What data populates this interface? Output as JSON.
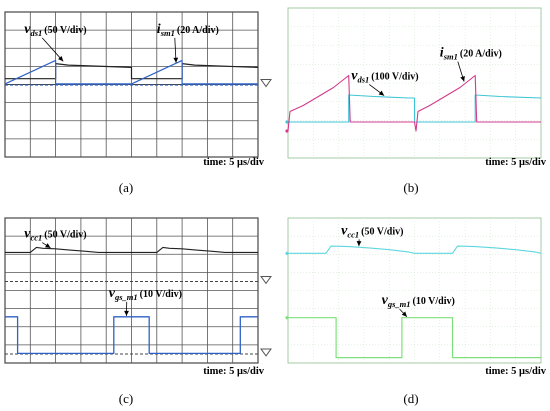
{
  "panels": [
    {
      "id": "a",
      "caption": "(a)",
      "time_label": "time: 5 μs/div",
      "style": "bw",
      "chart_data": {
        "type": "line",
        "xlabel": "time: 5 μs/div",
        "x_unit": "μs",
        "xlim": [
          0,
          50
        ],
        "grid": true,
        "series": [
          {
            "name": "v_ds1 (50 V/div)",
            "symbol": "v",
            "sub": "ds1",
            "scale": "(50 V/div)",
            "color": "#222222",
            "thickness": 1.2,
            "points": [
              [
                0,
                0.2
              ],
              [
                10,
                0.2
              ],
              [
                10,
                0.72
              ],
              [
                12.5,
                0.67
              ],
              [
                25,
                0.59
              ],
              [
                25,
                0.2
              ],
              [
                35,
                0.2
              ],
              [
                35,
                0.72
              ],
              [
                37.5,
                0.67
              ],
              [
                50,
                0.59
              ]
            ]
          },
          {
            "name": "i_sm1 (20 A/div)",
            "symbol": "i",
            "sub": "sm1",
            "scale": "(20 A/div)",
            "color": "#2f62c8",
            "thickness": 1.2,
            "points": [
              [
                0,
                0.02
              ],
              [
                10,
                0.83
              ],
              [
                10,
                0.02
              ],
              [
                25,
                0.02
              ],
              [
                35,
                0.83
              ],
              [
                35,
                0.02
              ],
              [
                50,
                0.02
              ]
            ]
          }
        ],
        "baselines": [
          {
            "y": 0.0,
            "color": "#444444",
            "dashed": false,
            "marker": "arrow-right-gray"
          },
          {
            "y": -0.02,
            "color": "#2f62c8",
            "dashed": true,
            "marker": ""
          }
        ],
        "annotations": [
          {
            "series": 0,
            "label_xy": [
              3.8,
              1.78
            ],
            "arrow_to": [
              11.5,
              0.8
            ]
          },
          {
            "series": 1,
            "label_xy": [
              30.0,
              1.78
            ],
            "arrow_to": [
              33.8,
              0.75
            ]
          }
        ]
      }
    },
    {
      "id": "b",
      "caption": "(b)",
      "time_label": "time: 5 μs/div",
      "style": "color",
      "chart_data": {
        "type": "line",
        "xlabel": "time: 5 μs/div",
        "x_unit": "μs",
        "xlim": [
          0,
          50
        ],
        "grid": true,
        "series": [
          {
            "name": "v_ds1 (100 V/div)",
            "symbol": "v",
            "sub": "ds1",
            "scale": "(100 V/div)",
            "color": "#3fc6d6",
            "thickness": 1.1,
            "points": [
              [
                0,
                0.0
              ],
              [
                12,
                0.0
              ],
              [
                12,
                0.9
              ],
              [
                17,
                0.85
              ],
              [
                24,
                0.8
              ],
              [
                25,
                0.8
              ],
              [
                25,
                0.0
              ],
              [
                37,
                0.0
              ],
              [
                37,
                0.9
              ],
              [
                42,
                0.85
              ],
              [
                50,
                0.8
              ]
            ]
          },
          {
            "name": "i_sm1 (20 A/div)",
            "symbol": "i",
            "sub": "sm1",
            "scale": "(20 A/div)",
            "color": "#d23a8c",
            "thickness": 1.1,
            "points": [
              [
                0,
                -0.3
              ],
              [
                0.4,
                0.35
              ],
              [
                3,
                0.55
              ],
              [
                6,
                0.85
              ],
              [
                9,
                1.15
              ],
              [
                12,
                1.55
              ],
              [
                12.3,
                0.0
              ],
              [
                25,
                0.0
              ],
              [
                25.3,
                -0.3
              ],
              [
                25.7,
                0.35
              ],
              [
                28,
                0.55
              ],
              [
                31,
                0.85
              ],
              [
                34,
                1.15
              ],
              [
                37,
                1.55
              ],
              [
                37.3,
                0.0
              ],
              [
                50,
                0.0
              ]
            ]
          }
        ],
        "baselines": [],
        "annotations": [
          {
            "series": 0,
            "label_xy": [
              12.5,
              1.42
            ],
            "arrow_to": [
              19.0,
              0.88
            ]
          },
          {
            "series": 1,
            "label_xy": [
              30.0,
              2.18
            ],
            "arrow_to": [
              34.8,
              1.35
            ]
          }
        ]
      }
    },
    {
      "id": "c",
      "caption": "(c)",
      "time_label": "time: 5 μs/div",
      "style": "bw",
      "chart_data": {
        "type": "line",
        "xlabel": "time: 5 μs/div",
        "x_unit": "μs",
        "xlim": [
          0,
          50
        ],
        "grid": true,
        "series": [
          {
            "name": "v_cc1 (50 V/div)",
            "symbol": "v",
            "sub": "cc1",
            "scale": "(50 V/div)",
            "color": "#222222",
            "thickness": 1.1,
            "points": [
              [
                0,
                5.6
              ],
              [
                5,
                5.6
              ],
              [
                6.2,
                5.88
              ],
              [
                7.5,
                5.83
              ],
              [
                10,
                5.8
              ],
              [
                12.5,
                5.74
              ],
              [
                16,
                5.66
              ],
              [
                18.5,
                5.6
              ],
              [
                30,
                5.6
              ],
              [
                31.2,
                5.88
              ],
              [
                32.5,
                5.83
              ],
              [
                35,
                5.8
              ],
              [
                37.5,
                5.74
              ],
              [
                41,
                5.66
              ],
              [
                43.5,
                5.6
              ],
              [
                50,
                5.6
              ]
            ]
          },
          {
            "name": "v_gs_m1 (10 V/div)",
            "symbol": "v",
            "sub": "gs_m1",
            "scale": "(10 V/div)",
            "color": "#2f62c8",
            "thickness": 1.3,
            "points": [
              [
                0,
                2.05
              ],
              [
                2.5,
                2.05
              ],
              [
                2.5,
                0.03
              ],
              [
                21.5,
                0.03
              ],
              [
                21.5,
                2.05
              ],
              [
                28.5,
                2.05
              ],
              [
                28.5,
                0.03
              ],
              [
                46.5,
                0.03
              ],
              [
                46.5,
                2.05
              ],
              [
                50,
                2.05
              ]
            ]
          }
        ],
        "baselines": [
          {
            "y": 4.0,
            "color": "#444444",
            "dashed": true,
            "marker": "arrow-right-gray"
          },
          {
            "y": 0.0,
            "color": "#444444",
            "dashed": true,
            "marker": "arrow-right-gray"
          }
        ],
        "annotations": [
          {
            "series": 0,
            "label_xy": [
              3.8,
              6.42
            ],
            "arrow_to": [
              9.0,
              5.85
            ]
          },
          {
            "series": 1,
            "label_xy": [
              20.5,
              3.15
            ],
            "arrow_to": [
              24.0,
              2.1
            ]
          }
        ]
      }
    },
    {
      "id": "d",
      "caption": "(d)",
      "time_label": "time: 5 μs/div",
      "style": "color",
      "chart_data": {
        "type": "line",
        "xlabel": "time: 5 μs/div",
        "x_unit": "μs",
        "xlim": [
          0,
          50
        ],
        "grid": true,
        "series": [
          {
            "name": "v_cc1 (50 V/div)",
            "symbol": "v",
            "sub": "cc1",
            "scale": "(50 V/div)",
            "color": "#5fd6e0",
            "thickness": 1.1,
            "points": [
              [
                0,
                5.55
              ],
              [
                7.5,
                5.55
              ],
              [
                8.5,
                5.95
              ],
              [
                12,
                5.92
              ],
              [
                16,
                5.85
              ],
              [
                20,
                5.75
              ],
              [
                24,
                5.62
              ],
              [
                25,
                5.55
              ],
              [
                32.5,
                5.55
              ],
              [
                33.5,
                5.95
              ],
              [
                37,
                5.92
              ],
              [
                41,
                5.85
              ],
              [
                45,
                5.75
              ],
              [
                49,
                5.62
              ],
              [
                50,
                5.55
              ]
            ]
          },
          {
            "name": "v_gs_m1 (10 V/div)",
            "symbol": "v",
            "sub": "gs_m1",
            "scale": "(10 V/div)",
            "color": "#7ee07a",
            "thickness": 1.2,
            "points": [
              [
                0,
                2.0
              ],
              [
                9.5,
                2.0
              ],
              [
                9.5,
                -0.2
              ],
              [
                22.5,
                -0.2
              ],
              [
                22.5,
                2.0
              ],
              [
                32.5,
                2.0
              ],
              [
                32.5,
                -0.2
              ],
              [
                50,
                -0.2
              ]
            ]
          }
        ],
        "baselines": [],
        "annotations": [
          {
            "series": 0,
            "label_xy": [
              10.5,
              6.6
            ],
            "arrow_to": [
              14.0,
              5.95
            ]
          },
          {
            "series": 1,
            "label_xy": [
              18.5,
              2.75
            ],
            "arrow_to": [
              23.5,
              2.05
            ]
          }
        ]
      }
    }
  ]
}
